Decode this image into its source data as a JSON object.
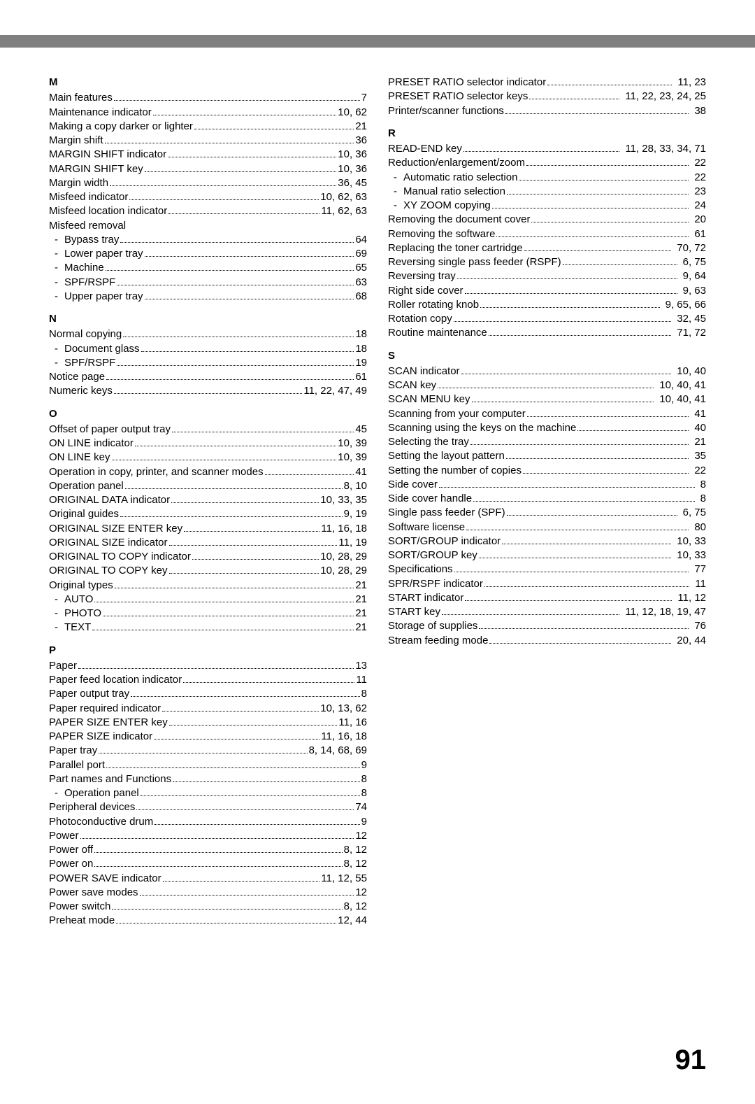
{
  "pageNumber": "91",
  "left": [
    {
      "type": "letter",
      "text": "M"
    },
    {
      "type": "entry",
      "label": "Main features",
      "pages": "7"
    },
    {
      "type": "entry",
      "label": "Maintenance indicator",
      "pages": "10, 62"
    },
    {
      "type": "entry",
      "label": "Making a copy darker or lighter",
      "pages": "21"
    },
    {
      "type": "entry",
      "label": "Margin shift",
      "pages": "36"
    },
    {
      "type": "entry",
      "label": "MARGIN SHIFT indicator",
      "pages": "10, 36"
    },
    {
      "type": "entry",
      "label": "MARGIN SHIFT key",
      "pages": "10, 36"
    },
    {
      "type": "entry",
      "label": "Margin width",
      "pages": "36, 45"
    },
    {
      "type": "entry",
      "label": "Misfeed indicator",
      "pages": "10, 62, 63"
    },
    {
      "type": "entry",
      "label": "Misfeed location indicator",
      "pages": "11, 62, 63"
    },
    {
      "type": "nopage",
      "label": "Misfeed removal"
    },
    {
      "type": "sub",
      "label": "Bypass tray",
      "pages": "64"
    },
    {
      "type": "sub",
      "label": "Lower paper tray",
      "pages": "69"
    },
    {
      "type": "sub",
      "label": "Machine",
      "pages": "65"
    },
    {
      "type": "sub",
      "label": "SPF/RSPF",
      "pages": "63"
    },
    {
      "type": "sub",
      "label": "Upper paper tray",
      "pages": "68"
    },
    {
      "type": "letter",
      "text": "N"
    },
    {
      "type": "entry",
      "label": "Normal copying",
      "pages": "18"
    },
    {
      "type": "sub",
      "label": "Document glass",
      "pages": "18"
    },
    {
      "type": "sub",
      "label": "SPF/RSPF",
      "pages": "19"
    },
    {
      "type": "entry",
      "label": "Notice page",
      "pages": "61"
    },
    {
      "type": "entry",
      "label": "Numeric keys",
      "pages": "11, 22, 47, 49"
    },
    {
      "type": "letter",
      "text": "O"
    },
    {
      "type": "entry",
      "label": "Offset of paper output tray",
      "pages": "45"
    },
    {
      "type": "entry",
      "label": "ON LINE indicator",
      "pages": "10, 39"
    },
    {
      "type": "entry",
      "label": "ON LINE key",
      "pages": "10, 39"
    },
    {
      "type": "entry",
      "label": "Operation in copy, printer, and scanner modes",
      "pages": "41"
    },
    {
      "type": "entry",
      "label": "Operation panel",
      "pages": "8, 10"
    },
    {
      "type": "entry",
      "label": "ORIGINAL DATA indicator",
      "pages": "10, 33, 35"
    },
    {
      "type": "entry",
      "label": "Original guides",
      "pages": "9, 19"
    },
    {
      "type": "entry",
      "label": "ORIGINAL SIZE ENTER key",
      "pages": "11, 16, 18"
    },
    {
      "type": "entry",
      "label": "ORIGINAL SIZE indicator",
      "pages": "11, 19"
    },
    {
      "type": "entry",
      "label": "ORIGINAL TO COPY indicator",
      "pages": "10, 28, 29"
    },
    {
      "type": "entry",
      "label": "ORIGINAL TO COPY key",
      "pages": "10, 28, 29"
    },
    {
      "type": "entry",
      "label": "Original types",
      "pages": "21"
    },
    {
      "type": "sub",
      "label": "AUTO",
      "pages": "21"
    },
    {
      "type": "sub",
      "label": "PHOTO",
      "pages": "21"
    },
    {
      "type": "sub",
      "label": "TEXT",
      "pages": "21"
    },
    {
      "type": "letter",
      "text": "P"
    },
    {
      "type": "entry",
      "label": "Paper",
      "pages": "13"
    },
    {
      "type": "entry",
      "label": "Paper feed location indicator",
      "pages": "11"
    },
    {
      "type": "entry",
      "label": "Paper output tray",
      "pages": "8"
    },
    {
      "type": "entry",
      "label": "Paper required indicator",
      "pages": "10, 13, 62"
    },
    {
      "type": "entry",
      "label": "PAPER SIZE ENTER key",
      "pages": "11, 16"
    },
    {
      "type": "entry",
      "label": "PAPER SIZE indicator",
      "pages": "11, 16, 18"
    },
    {
      "type": "entry",
      "label": "Paper tray",
      "pages": "8, 14, 68, 69"
    },
    {
      "type": "entry",
      "label": "Parallel port",
      "pages": "9"
    },
    {
      "type": "entry",
      "label": "Part names and Functions",
      "pages": "8"
    },
    {
      "type": "sub",
      "label": "Operation panel",
      "pages": "8"
    },
    {
      "type": "entry",
      "label": "Peripheral devices",
      "pages": "74"
    },
    {
      "type": "entry",
      "label": "Photoconductive drum",
      "pages": "9"
    },
    {
      "type": "entry",
      "label": "Power",
      "pages": "12"
    },
    {
      "type": "entry",
      "label": "Power off",
      "pages": "8, 12"
    },
    {
      "type": "entry",
      "label": "Power on",
      "pages": "8, 12"
    },
    {
      "type": "entry",
      "label": "POWER SAVE indicator",
      "pages": "11, 12, 55"
    },
    {
      "type": "entry",
      "label": "Power save modes",
      "pages": "12"
    },
    {
      "type": "entry",
      "label": "Power switch",
      "pages": "8, 12"
    },
    {
      "type": "entry",
      "label": "Preheat mode",
      "pages": "12, 44"
    }
  ],
  "right": [
    {
      "type": "entry",
      "label": "PRESET RATIO selector indicator",
      "pages": "11, 23"
    },
    {
      "type": "entry",
      "label": "PRESET RATIO selector keys",
      "pages": "11, 22, 23, 24, 25"
    },
    {
      "type": "entry",
      "label": "Printer/scanner functions",
      "pages": "38"
    },
    {
      "type": "letter",
      "text": "R"
    },
    {
      "type": "entry",
      "label": "READ-END key",
      "pages": "11, 28, 33, 34, 71"
    },
    {
      "type": "entry",
      "label": "Reduction/enlargement/zoom",
      "pages": "22"
    },
    {
      "type": "sub",
      "label": "Automatic ratio selection",
      "pages": "22"
    },
    {
      "type": "sub",
      "label": "Manual ratio selection",
      "pages": "23"
    },
    {
      "type": "sub",
      "label": "XY ZOOM copying",
      "pages": "24"
    },
    {
      "type": "entry",
      "label": "Removing the document cover",
      "pages": "20"
    },
    {
      "type": "entry",
      "label": "Removing the software",
      "pages": "61"
    },
    {
      "type": "entry",
      "label": "Replacing the toner cartridge",
      "pages": "70, 72"
    },
    {
      "type": "entry",
      "label": "Reversing single pass feeder (RSPF)",
      "pages": "6, 75"
    },
    {
      "type": "entry",
      "label": "Reversing tray",
      "pages": "9, 64"
    },
    {
      "type": "entry",
      "label": "Right side cover",
      "pages": "9, 63"
    },
    {
      "type": "entry",
      "label": "Roller rotating knob",
      "pages": "9, 65, 66"
    },
    {
      "type": "entry",
      "label": "Rotation copy",
      "pages": "32, 45"
    },
    {
      "type": "entry",
      "label": "Routine maintenance",
      "pages": "71, 72"
    },
    {
      "type": "letter",
      "text": "S"
    },
    {
      "type": "entry",
      "label": "SCAN indicator",
      "pages": "10, 40"
    },
    {
      "type": "entry",
      "label": "SCAN key",
      "pages": "10, 40, 41"
    },
    {
      "type": "entry",
      "label": "SCAN MENU key",
      "pages": "10, 40, 41"
    },
    {
      "type": "entry",
      "label": "Scanning from your computer",
      "pages": "41"
    },
    {
      "type": "entry",
      "label": "Scanning using the keys on the machine",
      "pages": "40"
    },
    {
      "type": "entry",
      "label": "Selecting the tray",
      "pages": "21"
    },
    {
      "type": "entry",
      "label": "Setting the layout pattern",
      "pages": "35"
    },
    {
      "type": "entry",
      "label": "Setting the number of copies",
      "pages": "22"
    },
    {
      "type": "entry",
      "label": "Side cover",
      "pages": "8"
    },
    {
      "type": "entry",
      "label": "Side cover handle",
      "pages": "8"
    },
    {
      "type": "entry",
      "label": "Single pass feeder (SPF)",
      "pages": "6, 75"
    },
    {
      "type": "entry",
      "label": "Software license",
      "pages": "80"
    },
    {
      "type": "entry",
      "label": "SORT/GROUP indicator",
      "pages": "10, 33"
    },
    {
      "type": "entry",
      "label": "SORT/GROUP key",
      "pages": "10, 33"
    },
    {
      "type": "entry",
      "label": "Specifications",
      "pages": "77"
    },
    {
      "type": "entry",
      "label": "SPR/RSPF indicator",
      "pages": "11"
    },
    {
      "type": "entry",
      "label": "START indicator",
      "pages": "11, 12"
    },
    {
      "type": "entry",
      "label": "START key",
      "pages": "11, 12, 18, 19, 47"
    },
    {
      "type": "entry",
      "label": "Storage of supplies",
      "pages": "76"
    },
    {
      "type": "entry",
      "label": "Stream feeding mode",
      "pages": "20, 44"
    }
  ]
}
